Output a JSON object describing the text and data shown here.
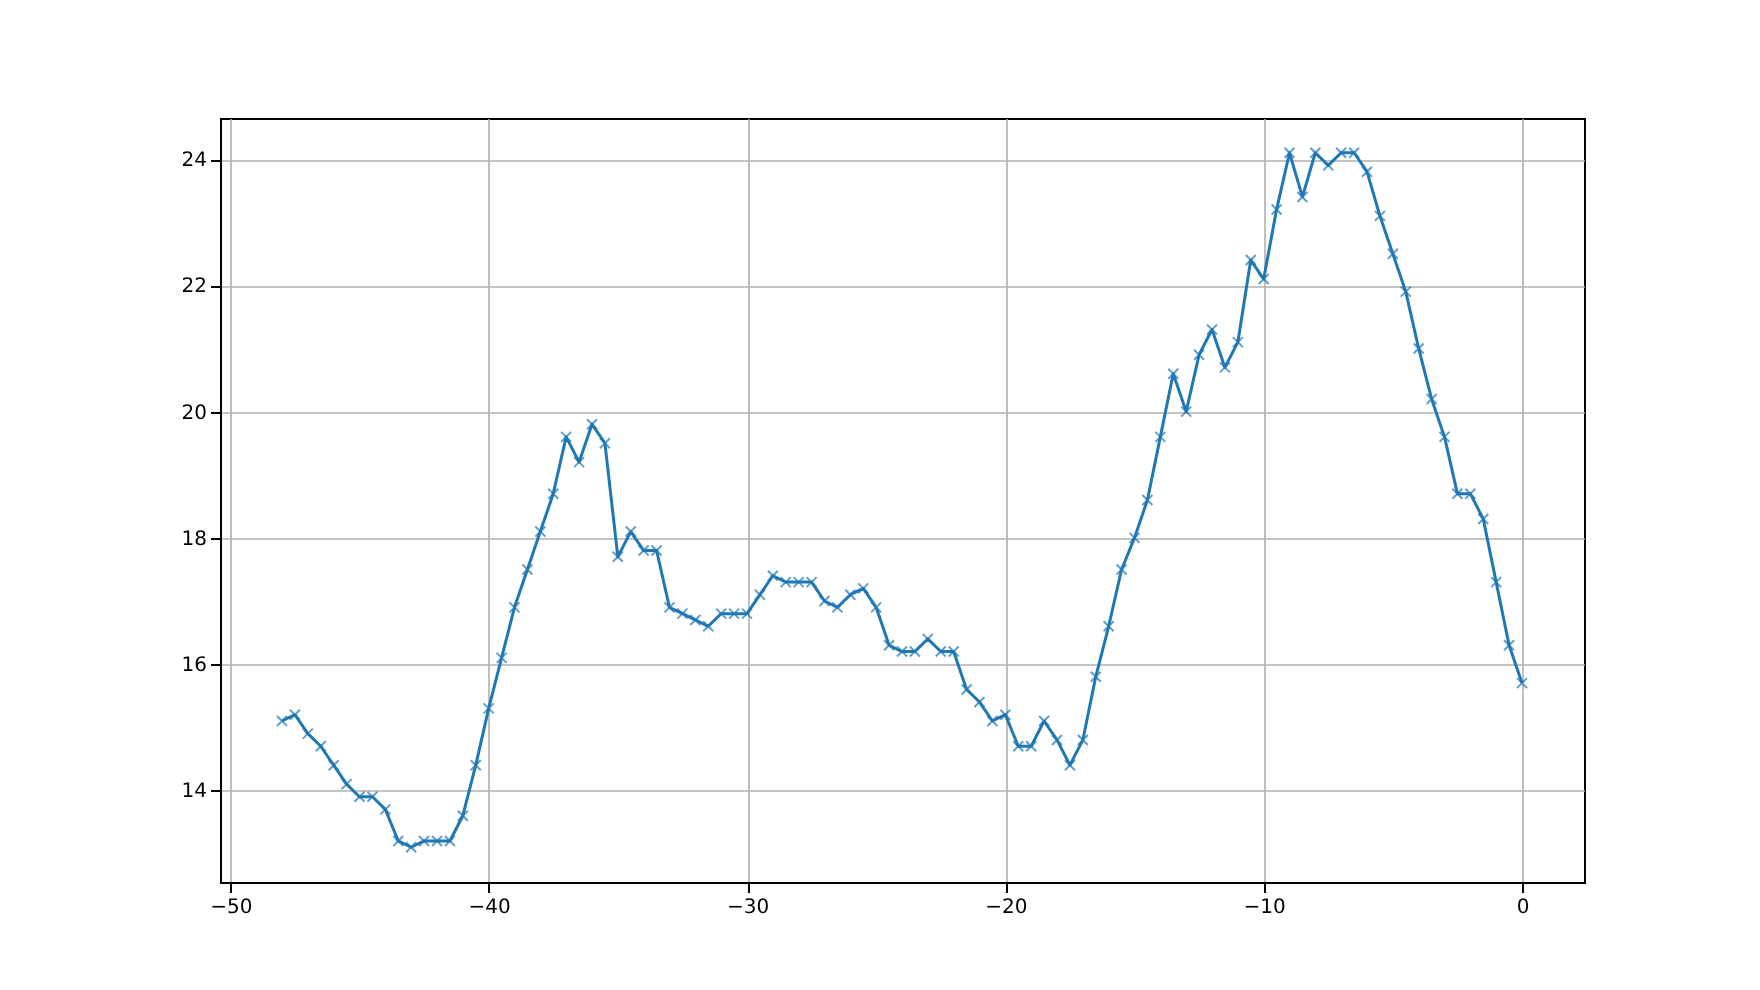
{
  "chart_data": {
    "type": "line",
    "x": [
      -48,
      -47.5,
      -47,
      -46.5,
      -46,
      -45.5,
      -45,
      -44.5,
      -44,
      -43.5,
      -43,
      -42.5,
      -42,
      -41.5,
      -41,
      -40.5,
      -40,
      -39.5,
      -39,
      -38.5,
      -38,
      -37.5,
      -37,
      -36.5,
      -36,
      -35.5,
      -35,
      -34.5,
      -34,
      -33.5,
      -33,
      -32.5,
      -32,
      -31.5,
      -31,
      -30.5,
      -30,
      -29.5,
      -29,
      -28.5,
      -28,
      -27.5,
      -27,
      -26.5,
      -26,
      -25.5,
      -25,
      -24.5,
      -24,
      -23.5,
      -23,
      -22.5,
      -22,
      -21.5,
      -21,
      -20.5,
      -20,
      -19.5,
      -19,
      -18.5,
      -18,
      -17.5,
      -17,
      -16.5,
      -16,
      -15.5,
      -15,
      -14.5,
      -14,
      -13.5,
      -13,
      -12.5,
      -12,
      -11.5,
      -11,
      -10.5,
      -10,
      -9.5,
      -9,
      -8.5,
      -8,
      -7.5,
      -7,
      -6.5,
      -6,
      -5.5,
      -5,
      -4.5,
      -4,
      -3.5,
      -3,
      -2.5,
      -2,
      -1.5,
      -1,
      -0.5,
      0
    ],
    "series": [
      {
        "color": "#1f77b4",
        "values": [
          15.1,
          15.2,
          14.9,
          14.7,
          14.4,
          14.1,
          13.9,
          13.9,
          13.7,
          13.2,
          13.1,
          13.2,
          13.2,
          13.2,
          13.6,
          14.4,
          15.3,
          16.1,
          16.9,
          17.5,
          18.1,
          18.7,
          19.6,
          19.2,
          19.8,
          19.5,
          17.7,
          18.1,
          17.8,
          17.8,
          16.9,
          16.8,
          16.7,
          16.6,
          16.8,
          16.8,
          16.8,
          17.1,
          17.4,
          17.3,
          17.3,
          17.3,
          17.0,
          16.9,
          17.1,
          17.2,
          16.9,
          16.3,
          16.2,
          16.2,
          16.4,
          16.2,
          16.2,
          15.6,
          15.4,
          15.1,
          15.2,
          14.7,
          14.7,
          15.1,
          14.8,
          14.4,
          14.8,
          15.8,
          16.6,
          17.5,
          18.0,
          18.6,
          19.6,
          20.6,
          20.0,
          20.9,
          21.3,
          20.7,
          21.1,
          22.4,
          22.1,
          23.2,
          24.1,
          23.4,
          24.1,
          23.9,
          24.1,
          24.1,
          23.8,
          23.1,
          22.5,
          21.9,
          21.0,
          20.2,
          19.6,
          18.7,
          18.7,
          18.3,
          17.3,
          16.3,
          15.7
        ]
      }
    ],
    "xlim": [
      -50.4,
      2.4
    ],
    "xticks": [
      -50,
      -40,
      -30,
      -20,
      -10,
      0
    ],
    "ylim": [
      12.55,
      24.65
    ],
    "yticks": [
      14,
      16,
      18,
      20,
      22,
      24
    ],
    "grid": true,
    "marker": "cross",
    "line_style": "solid"
  }
}
